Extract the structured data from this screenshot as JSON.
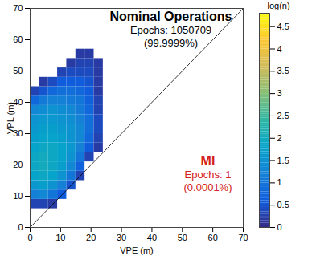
{
  "chart_data": {
    "type": "heatmap",
    "x_label": "VPE (m)",
    "y_label": "VPL (m)",
    "xlim": [
      0,
      70
    ],
    "ylim": [
      0,
      70
    ],
    "xticks": [
      0,
      10,
      20,
      30,
      40,
      50,
      60,
      70
    ],
    "yticks": [
      0,
      10,
      20,
      30,
      40,
      50,
      60,
      70
    ],
    "grid": false,
    "x_bins": [
      0,
      3,
      6,
      9,
      12,
      15,
      18,
      21,
      24
    ],
    "y_bins": [
      6,
      9,
      12,
      15,
      18,
      21,
      24,
      27,
      30,
      33,
      36,
      39,
      42,
      45,
      48,
      51,
      54,
      57
    ],
    "cells": [
      [
        0.3,
        0.3,
        0.2,
        null,
        null,
        null,
        null,
        null
      ],
      [
        1.2,
        1.3,
        1.0,
        0.6,
        null,
        null,
        null,
        null
      ],
      [
        1.6,
        1.7,
        1.5,
        1.2,
        0.5,
        null,
        null,
        null
      ],
      [
        1.8,
        1.9,
        1.8,
        1.5,
        1.0,
        0.3,
        null,
        null
      ],
      [
        1.9,
        2.0,
        1.9,
        1.7,
        1.3,
        0.7,
        null,
        null
      ],
      [
        1.9,
        2.0,
        1.9,
        1.8,
        1.5,
        1.0,
        0.3,
        null
      ],
      [
        1.8,
        1.9,
        1.9,
        1.8,
        1.6,
        1.2,
        0.6,
        0.2
      ],
      [
        1.7,
        1.8,
        1.8,
        1.7,
        1.5,
        1.3,
        0.8,
        0.3
      ],
      [
        1.6,
        1.7,
        1.7,
        1.6,
        1.5,
        1.3,
        0.9,
        0.4
      ],
      [
        1.5,
        1.6,
        1.6,
        1.5,
        1.4,
        1.2,
        0.9,
        0.4
      ],
      [
        1.3,
        1.4,
        1.5,
        1.4,
        1.3,
        1.1,
        0.8,
        0.3
      ],
      [
        0.8,
        1.1,
        1.2,
        1.2,
        1.1,
        1.0,
        0.7,
        0.3
      ],
      [
        0.3,
        0.5,
        0.8,
        0.9,
        0.9,
        0.8,
        0.6,
        0.2
      ],
      [
        null,
        0.2,
        0.4,
        0.6,
        0.6,
        0.6,
        0.5,
        0.2
      ],
      [
        null,
        null,
        null,
        0.3,
        0.4,
        0.4,
        0.4,
        0.2
      ],
      [
        null,
        null,
        null,
        null,
        0.2,
        0.3,
        0.3,
        0.2
      ],
      [
        null,
        null,
        null,
        null,
        null,
        0.2,
        0.2,
        null
      ]
    ],
    "reference_line": {
      "x": [
        0,
        70
      ],
      "y": [
        0,
        70
      ]
    },
    "colorbar": {
      "label": "log(n)",
      "lim": [
        0,
        4.8
      ],
      "ticks": [
        0,
        0.5,
        1,
        1.5,
        2,
        2.5,
        3,
        3.5,
        4,
        4.5
      ]
    },
    "annotations": {
      "nominal": {
        "title": "Nominal Operations",
        "lines": [
          "Epochs: 1050709",
          "(99.9999%)"
        ]
      },
      "mi": {
        "title": "MI",
        "lines": [
          "Epochs: 1",
          "(0.0001%)"
        ]
      }
    }
  }
}
